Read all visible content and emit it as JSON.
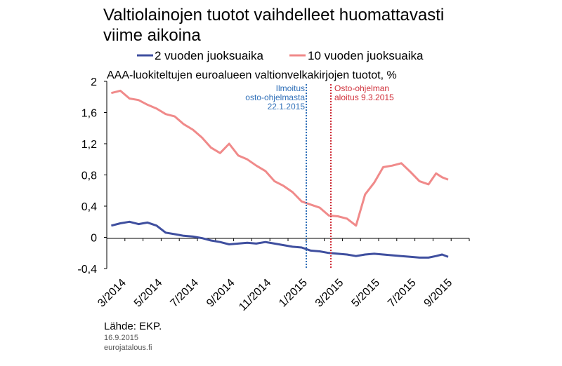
{
  "chart_data": {
    "type": "line",
    "title": "Valtiolainojen tuotot vaihdelleet huomattavasti viime aikoina",
    "title_lines": [
      "Valtiolainojen tuotot vaihdelleet huomattavasti",
      "viime aikoina"
    ],
    "subtitle": "AAA-luokiteltujen euroalueen valtionvelkakirjojen tuotot, %",
    "legend_position": "top",
    "grid": false,
    "ylim": [
      -0.4,
      2.0
    ],
    "yticks": [
      "2",
      "1,6",
      "1,2",
      "0,8",
      "0,4",
      "0",
      "-0,4"
    ],
    "x_tick_labels": [
      "3/2014",
      "5/2014",
      "7/2014",
      "9/2014",
      "11/2014",
      "1/2015",
      "3/2015",
      "5/2015",
      "7/2015",
      "9/2015"
    ],
    "x_range_months": [
      "3/2014",
      "10/2015"
    ],
    "series": [
      {
        "name": "2 vuoden juoksuaika",
        "color": "#3f4f9f",
        "points": [
          [
            "3/2014",
            0.15
          ],
          [
            "3/2014",
            0.18
          ],
          [
            "4/2014",
            0.2
          ],
          [
            "4/2014",
            0.17
          ],
          [
            "5/2014",
            0.19
          ],
          [
            "5/2014",
            0.15
          ],
          [
            "6/2014",
            0.06
          ],
          [
            "6/2014",
            0.04
          ],
          [
            "7/2014",
            0.02
          ],
          [
            "7/2014",
            0.01
          ],
          [
            "8/2014",
            -0.01
          ],
          [
            "8/2014",
            -0.04
          ],
          [
            "9/2014",
            -0.06
          ],
          [
            "9/2014",
            -0.09
          ],
          [
            "10/2014",
            -0.08
          ],
          [
            "10/2014",
            -0.07
          ],
          [
            "11/2014",
            -0.08
          ],
          [
            "11/2014",
            -0.06
          ],
          [
            "12/2014",
            -0.08
          ],
          [
            "12/2014",
            -0.1
          ],
          [
            "1/2015",
            -0.12
          ],
          [
            "1/2015",
            -0.13
          ],
          [
            "2/2015",
            -0.17
          ],
          [
            "2/2015",
            -0.18
          ],
          [
            "3/2015",
            -0.2
          ],
          [
            "3/2015",
            -0.21
          ],
          [
            "4/2015",
            -0.22
          ],
          [
            "4/2015",
            -0.24
          ],
          [
            "5/2015",
            -0.22
          ],
          [
            "5/2015",
            -0.21
          ],
          [
            "6/2015",
            -0.22
          ],
          [
            "6/2015",
            -0.23
          ],
          [
            "7/2015",
            -0.24
          ],
          [
            "7/2015",
            -0.25
          ],
          [
            "8/2015",
            -0.26
          ],
          [
            "8/2015",
            -0.26
          ],
          [
            "9/2015",
            -0.24
          ],
          [
            "9/2015",
            -0.22
          ],
          [
            "9/2015",
            -0.25
          ]
        ]
      },
      {
        "name": "10 vuoden juoksuaika",
        "color": "#f08a8a",
        "points": [
          [
            "3/2014",
            1.85
          ],
          [
            "3/2014",
            1.88
          ],
          [
            "4/2014",
            1.78
          ],
          [
            "4/2014",
            1.76
          ],
          [
            "5/2014",
            1.7
          ],
          [
            "5/2014",
            1.65
          ],
          [
            "6/2014",
            1.58
          ],
          [
            "6/2014",
            1.55
          ],
          [
            "7/2014",
            1.45
          ],
          [
            "7/2014",
            1.38
          ],
          [
            "8/2014",
            1.28
          ],
          [
            "8/2014",
            1.15
          ],
          [
            "9/2014",
            1.08
          ],
          [
            "9/2014",
            1.2
          ],
          [
            "10/2014",
            1.05
          ],
          [
            "10/2014",
            1.0
          ],
          [
            "11/2014",
            0.92
          ],
          [
            "11/2014",
            0.85
          ],
          [
            "12/2014",
            0.72
          ],
          [
            "12/2014",
            0.66
          ],
          [
            "1/2015",
            0.58
          ],
          [
            "1/2015",
            0.46
          ],
          [
            "2/2015",
            0.42
          ],
          [
            "2/2015",
            0.38
          ],
          [
            "3/2015",
            0.28
          ],
          [
            "3/2015",
            0.27
          ],
          [
            "4/2015",
            0.24
          ],
          [
            "4/2015",
            0.15
          ],
          [
            "5/2015",
            0.55
          ],
          [
            "5/2015",
            0.7
          ],
          [
            "6/2015",
            0.9
          ],
          [
            "6/2015",
            0.92
          ],
          [
            "7/2015",
            0.95
          ],
          [
            "7/2015",
            0.84
          ],
          [
            "8/2015",
            0.72
          ],
          [
            "8/2015",
            0.68
          ],
          [
            "9/2015",
            0.82
          ],
          [
            "9/2015",
            0.77
          ],
          [
            "9/2015",
            0.74
          ]
        ]
      }
    ],
    "annotations": [
      {
        "date": "1/2015",
        "text_lines": [
          "Ilmoitus",
          "osto-ohjelmasta",
          "22.1.2015"
        ],
        "color": "#2f6fb8"
      },
      {
        "date": "3/2015",
        "text_lines": [
          "Osto-ohjelman",
          "aloitus 9.3.2015"
        ],
        "color": "#d0303a"
      }
    ]
  },
  "footer": {
    "source": "Lähde: EKP.",
    "date": "16.9.2015",
    "site": "eurojatalous.fi"
  }
}
